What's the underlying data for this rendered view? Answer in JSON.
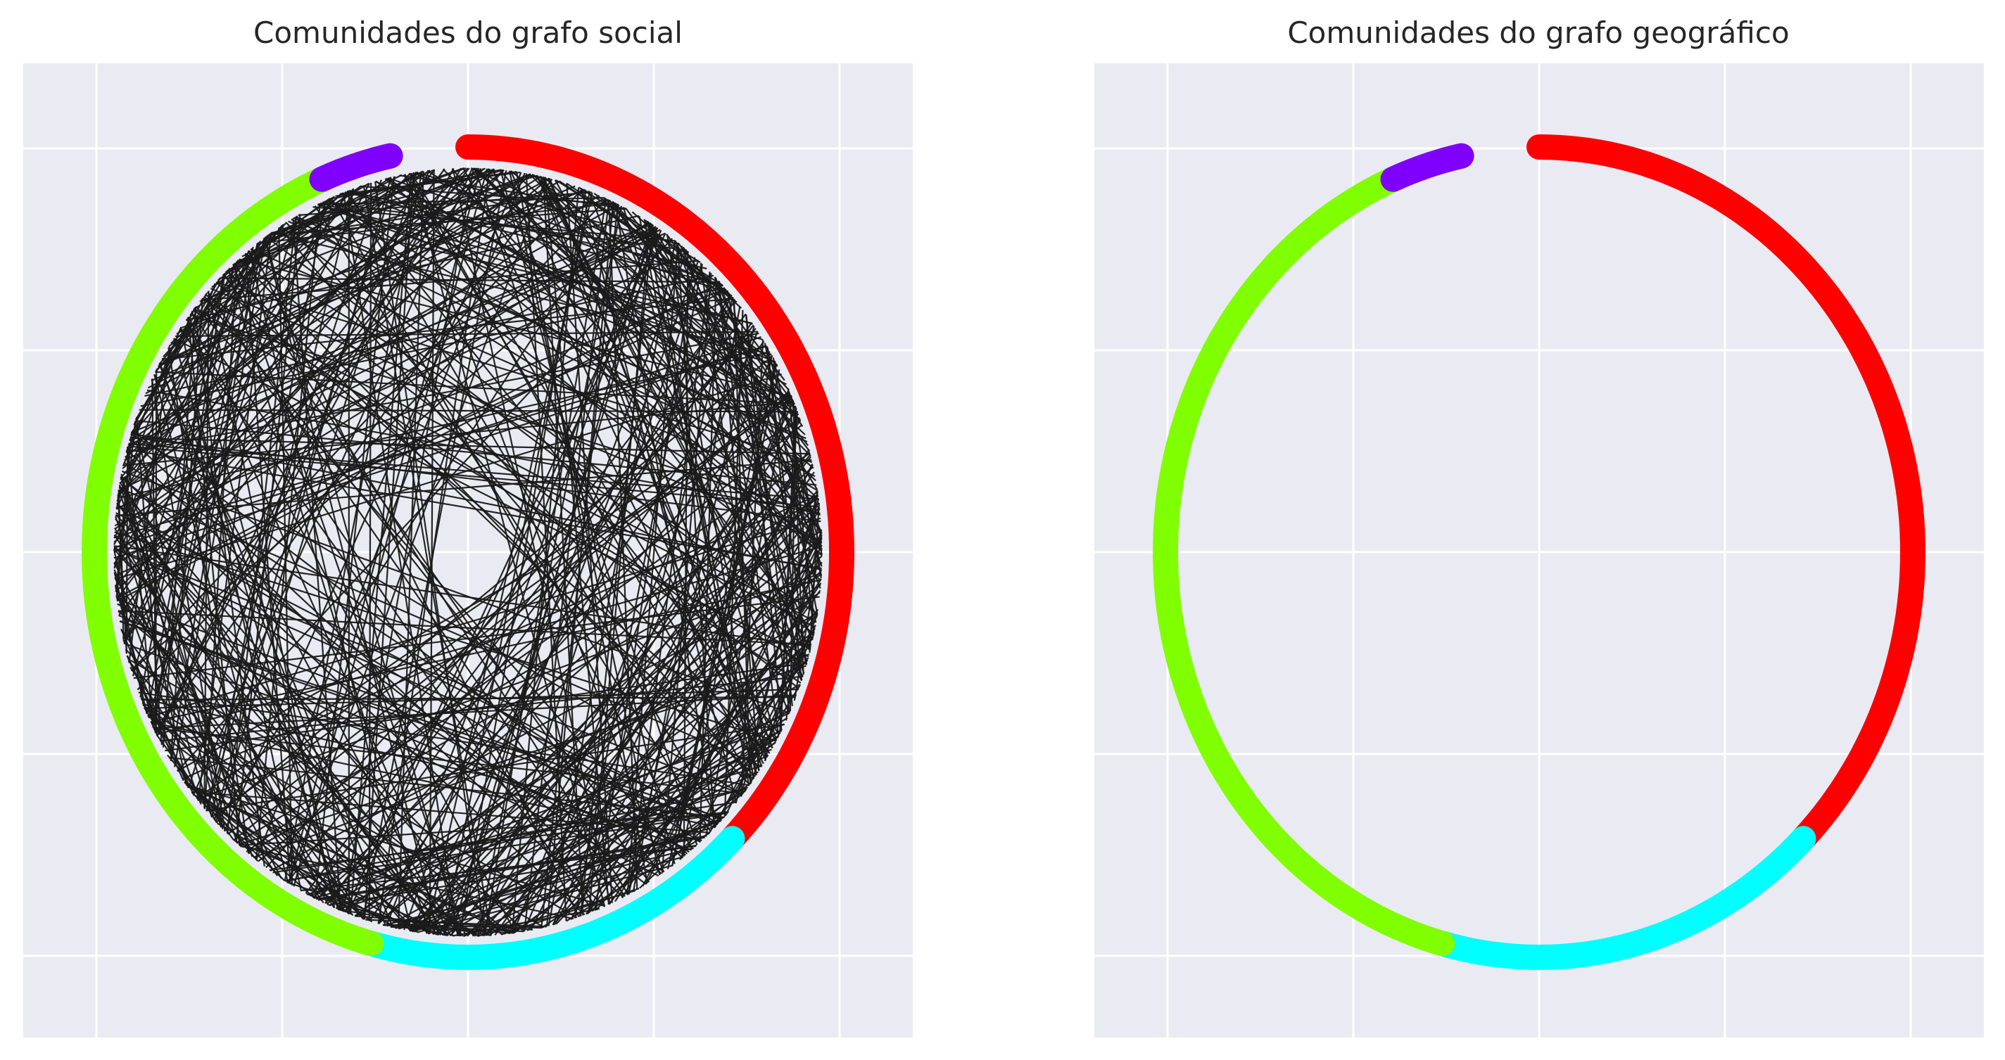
{
  "chart_data": [
    {
      "type": "network",
      "title": "Comunidades do grafo social",
      "xlim": [
        -1.2,
        1.2
      ],
      "ylim": [
        -1.2,
        1.2
      ],
      "grid": true,
      "background": "#eaeaf2",
      "grid_color": "#ffffff",
      "edge_color": "#1a1a1a",
      "edges_visible": true,
      "communities": [
        {
          "color": "#ff0000",
          "arc_deg": [
            -45,
            90
          ]
        },
        {
          "color": "#00ffff",
          "arc_deg": [
            -105,
            -45
          ]
        },
        {
          "color": "#80ff00",
          "arc_deg": [
            -105,
            -258
          ]
        },
        {
          "color": "#8000ff",
          "arc_deg": [
            102,
            113
          ]
        }
      ]
    },
    {
      "type": "network",
      "title": "Comunidades do grafo geográfico",
      "xlim": [
        -1.2,
        1.2
      ],
      "ylim": [
        -1.2,
        1.2
      ],
      "grid": true,
      "background": "#eaeaf2",
      "grid_color": "#ffffff",
      "edge_color": "#1a1a1a",
      "edges_visible": false,
      "communities": [
        {
          "color": "#ff0000",
          "arc_deg": [
            -45,
            90
          ]
        },
        {
          "color": "#00ffff",
          "arc_deg": [
            -105,
            -45
          ]
        },
        {
          "color": "#80ff00",
          "arc_deg": [
            -105,
            -258
          ]
        },
        {
          "color": "#8000ff",
          "arc_deg": [
            102,
            113
          ]
        }
      ]
    }
  ]
}
